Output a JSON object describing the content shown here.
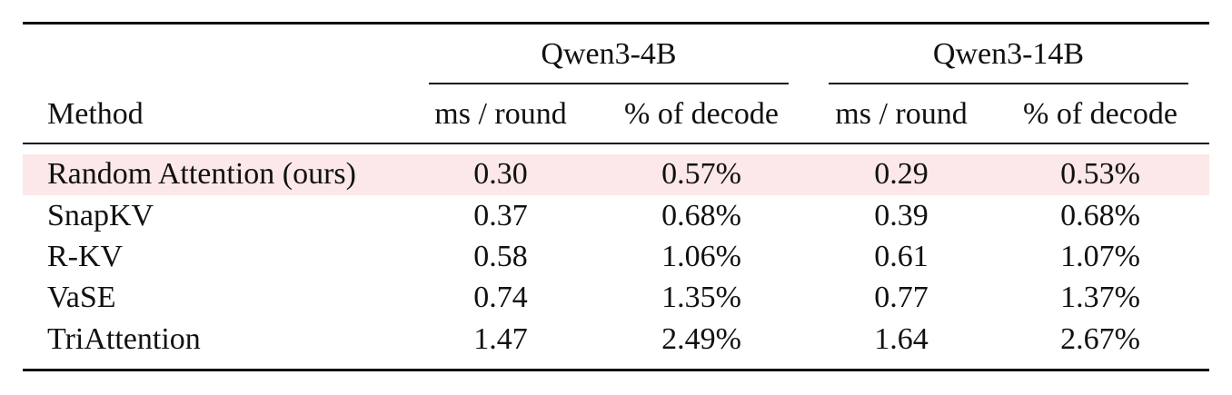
{
  "table": {
    "groups": [
      "Qwen3-4B",
      "Qwen3-14B"
    ],
    "columns": [
      "Method",
      "ms / round",
      "% of decode",
      "ms / round",
      "% of decode"
    ],
    "rows": [
      [
        "Random Attention (ours)",
        "0.30",
        "0.57%",
        "0.29",
        "0.53%"
      ],
      [
        "SnapKV",
        "0.37",
        "0.68%",
        "0.39",
        "0.68%"
      ],
      [
        "R-KV",
        "0.58",
        "1.06%",
        "0.61",
        "1.07%"
      ],
      [
        "VaSE",
        "0.74",
        "1.35%",
        "0.77",
        "1.37%"
      ],
      [
        "TriAttention",
        "1.47",
        "2.49%",
        "1.64",
        "2.67%"
      ]
    ]
  }
}
